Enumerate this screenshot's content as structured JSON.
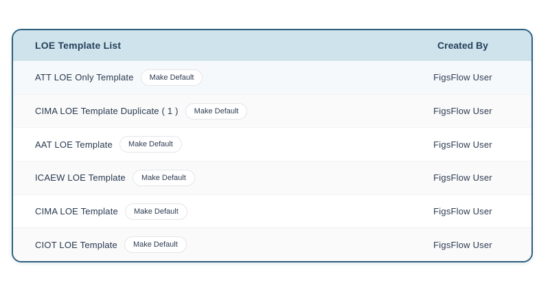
{
  "table": {
    "title": "LOE Template List",
    "created_by_header": "Created By",
    "rows": [
      {
        "name": "ATT LOE Only Template",
        "badge": "Make Default",
        "created_by": "FigsFlow User"
      },
      {
        "name": "CIMA LOE Template Duplicate ( 1 )",
        "badge": "Make Default",
        "created_by": "FigsFlow User"
      },
      {
        "name": "AAT LOE Template",
        "badge": "Make Default",
        "created_by": "FigsFlow User"
      },
      {
        "name": "ICAEW LOE Template",
        "badge": "Make Default",
        "created_by": "FigsFlow User"
      },
      {
        "name": "CIMA LOE Template",
        "badge": "Make Default",
        "created_by": "FigsFlow User"
      },
      {
        "name": "CIOT LOE Template",
        "badge": "Make Default",
        "created_by": "FigsFlow User"
      }
    ]
  },
  "colors": {
    "card_border": "#2b5d7c",
    "header_bg": "#cfe3ec",
    "header_text": "#24405a",
    "row_text": "#26374d",
    "row_alt_bg": "#fafafa",
    "first_row_bg": "#f6f9fb",
    "badge_border": "#e3e5e8",
    "badge_bg": "#ffffff"
  }
}
